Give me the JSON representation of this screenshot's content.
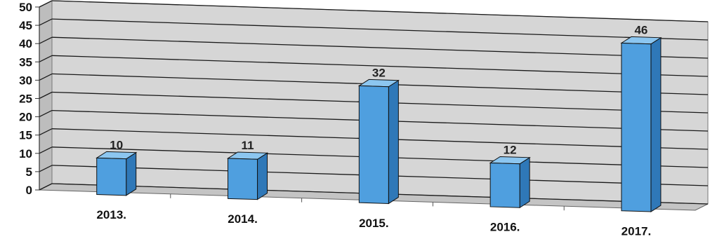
{
  "chart_data": {
    "type": "bar",
    "title": "",
    "xlabel": "",
    "ylabel": "",
    "categories": [
      "2013.",
      "2014.",
      "2015.",
      "2016.",
      "2017."
    ],
    "values": [
      10,
      11,
      32,
      12,
      46
    ],
    "data_labels": [
      "10",
      "11",
      "32",
      "12",
      "46"
    ],
    "ylim": [
      0,
      50
    ],
    "yticks": [
      "0",
      "5",
      "10",
      "15",
      "20",
      "25",
      "30",
      "35",
      "40",
      "45",
      "50"
    ],
    "grid": true,
    "legend": "none",
    "style": "3d",
    "colors": {
      "bar_front": "#4f9fdf",
      "bar_side": "#2f78b8",
      "bar_top": "#8cc6f0",
      "back_wall": "#d6d6d6",
      "floor": "#c4c4c4",
      "gridline": "#1a1a1a"
    }
  }
}
